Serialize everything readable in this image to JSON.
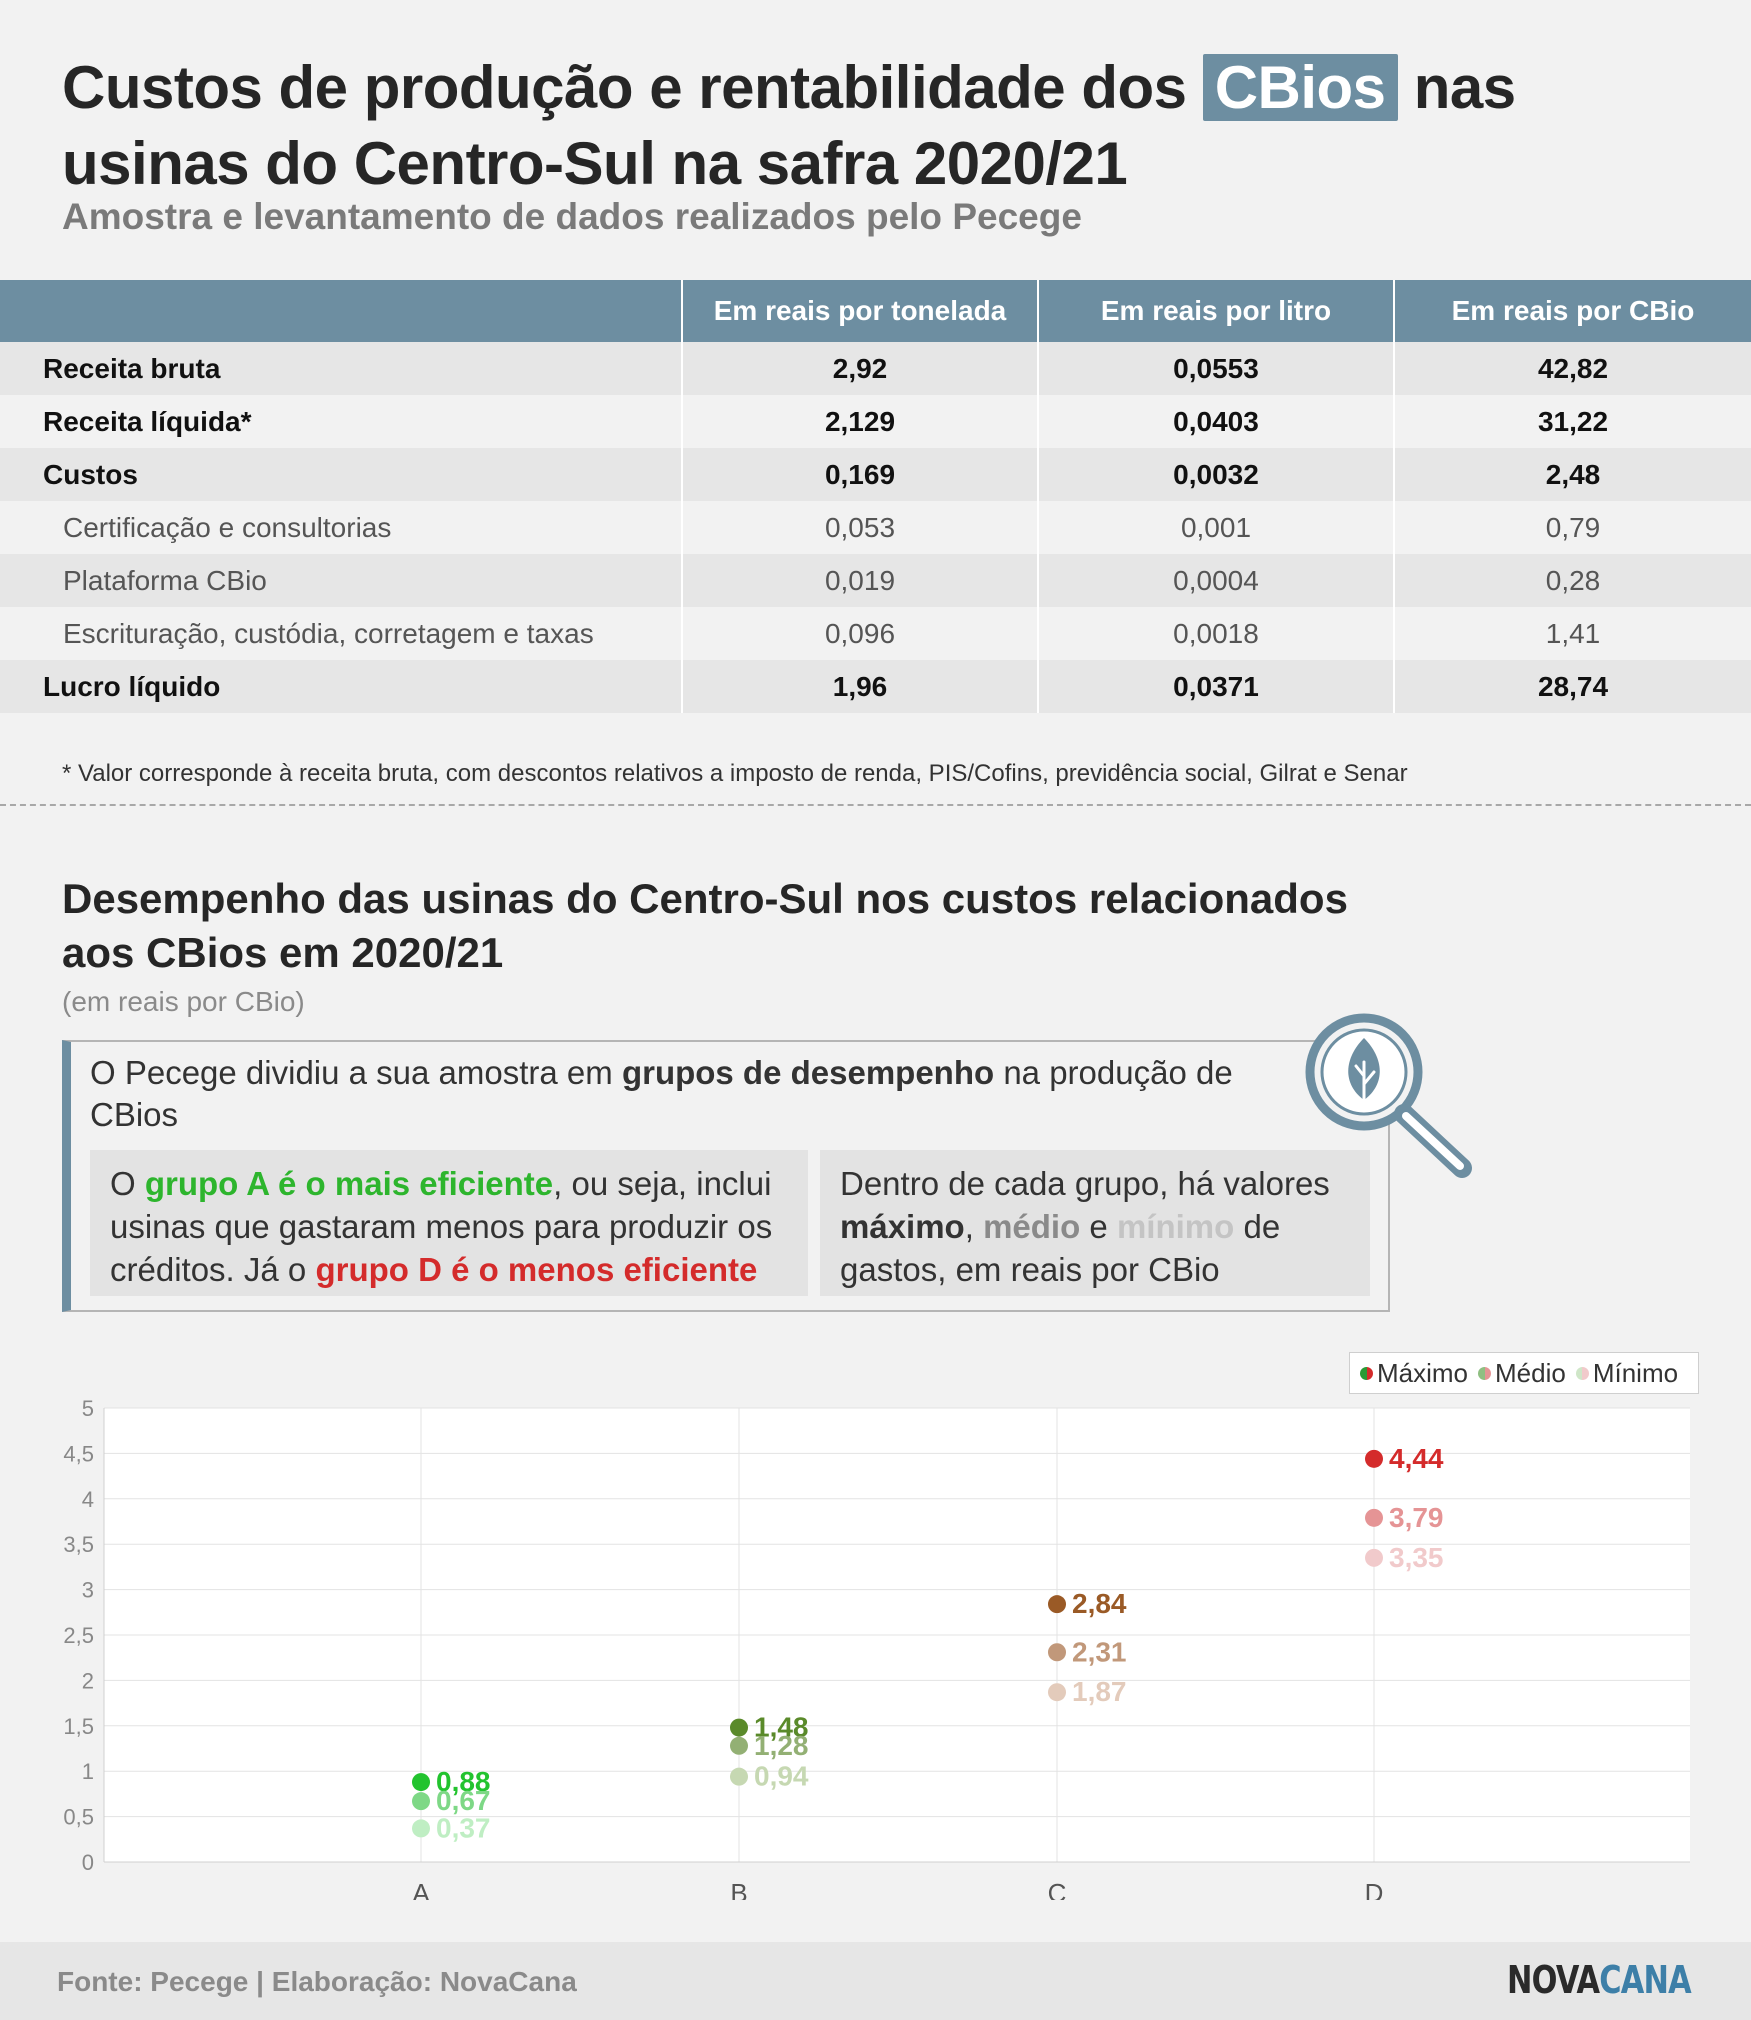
{
  "header": {
    "title_pre": "Custos de produção e rentabilidade dos",
    "title_hl": "CBios",
    "title_post": "nas usinas do Centro-Sul na safra 2020/21",
    "subtitle": "Amostra e levantamento de dados realizados pelo Pecege"
  },
  "table": {
    "columns": [
      "",
      "Em reais por tonelada",
      "Em reais por litro",
      "Em reais por CBio"
    ],
    "rows": [
      [
        "Receita bruta",
        "2,92",
        "0,0553",
        "42,82"
      ],
      [
        "Receita líquida*",
        "2,129",
        "0,0403",
        "31,22"
      ],
      [
        "Custos",
        "0,169",
        "0,0032",
        "2,48"
      ],
      [
        "Certificação e consultorias",
        "0,053",
        "0,001",
        "0,79"
      ],
      [
        "Plataforma CBio",
        "0,019",
        "0,0004",
        "0,28"
      ],
      [
        "Escrituração, custódia, corretagem e taxas",
        "0,096",
        "0,0018",
        "1,41"
      ],
      [
        "Lucro líquido",
        "1,96",
        "0,0371",
        "28,74"
      ]
    ],
    "footnote": "* Valor corresponde à receita bruta, com descontos relativos a imposto de renda, PIS/Cofins, previdência social, Gilrat e Senar"
  },
  "section2": {
    "title": "Desempenho das usinas do Centro-Sul nos custos relacionados aos CBios em 2020/21",
    "unit": "(em reais por CBio)"
  },
  "infobox": {
    "intro_1": "O Pecege dividiu a sua amostra em ",
    "intro_bold": "grupos de desempenho",
    "intro_2": " na produção de CBios",
    "left_1": "O ",
    "left_green": "grupo A é o mais eficiente",
    "left_2": ", ou seja, inclui usinas que gastaram menos para produzir os créditos. Já o ",
    "left_red": "grupo D é o menos eficiente",
    "right_1": "Dentro de cada grupo, há valores ",
    "right_max": "máximo",
    "right_sep": ", ",
    "right_med": "médio",
    "right_e": " e ",
    "right_min": "mínimo",
    "right_2": " de gastos, em reais por CBio",
    "icon": "magnifier-leaf-icon"
  },
  "legend": {
    "max": "Máximo",
    "med": "Médio",
    "min": "Mínimo"
  },
  "chart_data": {
    "type": "scatter",
    "categories": [
      "A",
      "B",
      "C",
      "D"
    ],
    "series": [
      {
        "name": "Máximo",
        "values": [
          0.88,
          1.48,
          2.84,
          4.44
        ],
        "labels": [
          "0,88",
          "1,48",
          "2,84",
          "4,44"
        ]
      },
      {
        "name": "Médio",
        "values": [
          0.67,
          1.28,
          2.31,
          3.79
        ],
        "labels": [
          "0,67",
          "1,28",
          "2,31",
          "3,79"
        ]
      },
      {
        "name": "Mínimo",
        "values": [
          0.37,
          0.94,
          1.87,
          3.35
        ],
        "labels": [
          "0,37",
          "0,94",
          "1,87",
          "3,35"
        ]
      }
    ],
    "colors": {
      "A": [
        "#22c32e",
        "#7ed886",
        "#bfeec3"
      ],
      "B": [
        "#5a8a2a",
        "#93b074",
        "#c6d8b2"
      ],
      "C": [
        "#9a5a26",
        "#c1987a",
        "#e3cbbb"
      ],
      "D": [
        "#d42b2b",
        "#e59495",
        "#f1cacb"
      ]
    },
    "ylim": [
      0,
      5
    ],
    "yticks": [
      0,
      0.5,
      1,
      1.5,
      2,
      2.5,
      3,
      3.5,
      4,
      4.5,
      5
    ],
    "ytick_labels": [
      "0",
      "0,5",
      "1",
      "1,5",
      "2",
      "2,5",
      "3",
      "3,5",
      "4",
      "4,5",
      "5"
    ],
    "grid": true,
    "legend_position": "top-right"
  },
  "footer": {
    "source": "Fonte: Pecege | Elaboração: NovaCana",
    "logo_a": "NOVA",
    "logo_b": "CANA"
  }
}
